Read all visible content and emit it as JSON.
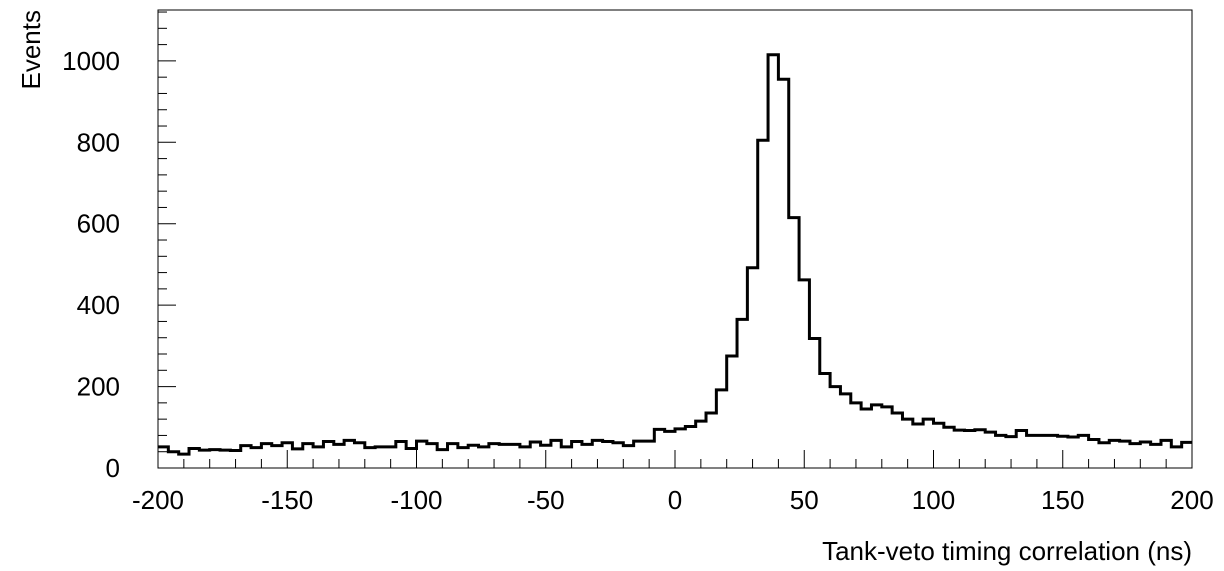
{
  "chart_data": {
    "type": "histogram",
    "title": "",
    "xlabel": "Tank-veto timing correlation (ns)",
    "ylabel": "Events",
    "xlim": [
      -200,
      200
    ],
    "ylim": [
      0,
      1125
    ],
    "bin_width": 4,
    "x_ticks": [
      "-200",
      "-150",
      "-100",
      "-50",
      "0",
      "50",
      "100",
      "150",
      "200"
    ],
    "y_ticks": [
      "0",
      "200",
      "400",
      "600",
      "800",
      "1000"
    ],
    "y_tick_values": [
      0,
      200,
      400,
      600,
      800,
      1000
    ],
    "x_tick_values": [
      -200,
      -150,
      -100,
      -50,
      0,
      50,
      100,
      150,
      200
    ],
    "grid": false,
    "legend": false,
    "line_color": "#000000",
    "series": [
      {
        "bin_low_edges": [
          -200,
          -196,
          -192,
          -188,
          -184,
          -180,
          -176,
          -172,
          -168,
          -164,
          -160,
          -156,
          -152,
          -148,
          -144,
          -140,
          -136,
          -132,
          -128,
          -124,
          -120,
          -116,
          -112,
          -108,
          -104,
          -100,
          -96,
          -92,
          -88,
          -84,
          -80,
          -76,
          -72,
          -68,
          -64,
          -60,
          -56,
          -52,
          -48,
          -44,
          -40,
          -36,
          -32,
          -28,
          -24,
          -20,
          -16,
          -12,
          -8,
          -4,
          0,
          4,
          8,
          12,
          16,
          20,
          24,
          28,
          32,
          36,
          40,
          44,
          48,
          52,
          56,
          60,
          64,
          68,
          72,
          76,
          80,
          84,
          88,
          92,
          96,
          100,
          104,
          108,
          112,
          116,
          120,
          124,
          128,
          132,
          136,
          140,
          144,
          148,
          152,
          156,
          160,
          164,
          168,
          172,
          176,
          180,
          184,
          188,
          192,
          196
        ],
        "values": [
          52,
          40,
          34,
          48,
          44,
          45,
          44,
          43,
          55,
          50,
          60,
          55,
          62,
          47,
          60,
          52,
          65,
          58,
          68,
          62,
          50,
          52,
          52,
          65,
          48,
          66,
          60,
          45,
          60,
          50,
          56,
          52,
          60,
          58,
          58,
          52,
          64,
          56,
          68,
          52,
          65,
          58,
          68,
          65,
          62,
          55,
          66,
          66,
          95,
          90,
          96,
          102,
          115,
          135,
          192,
          275,
          365,
          492,
          805,
          1015,
          955,
          615,
          462,
          318,
          232,
          200,
          182,
          160,
          145,
          155,
          150,
          135,
          120,
          108,
          120,
          110,
          100,
          93,
          92,
          94,
          88,
          80,
          77,
          92,
          80,
          80,
          80,
          78,
          76,
          80,
          70,
          62,
          68,
          66,
          60,
          64,
          58,
          68,
          52,
          63
        ]
      }
    ]
  }
}
